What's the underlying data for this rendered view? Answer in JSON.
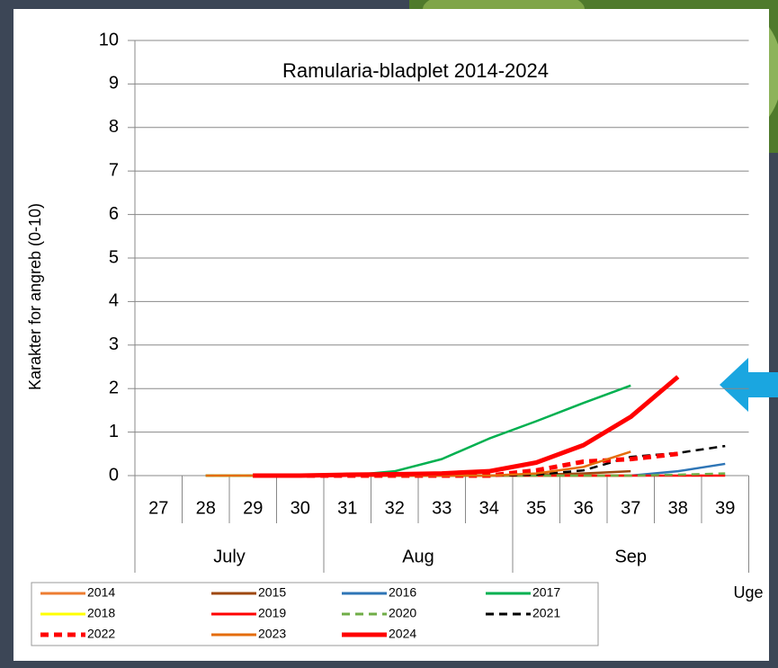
{
  "chart_data": {
    "type": "line",
    "title": "Ramularia-bladplet 2014-2024",
    "y_label": "Karakter for angreb (0-10)",
    "x_label": "Uge",
    "categories": [
      "27",
      "28",
      "29",
      "30",
      "31",
      "32",
      "33",
      "34",
      "35",
      "36",
      "37",
      "38",
      "39"
    ],
    "groups": [
      {
        "label": "July",
        "span": 4
      },
      {
        "label": "Aug",
        "span": 4
      },
      {
        "label": "Sep",
        "span": 5
      }
    ],
    "ylim": [
      0,
      10
    ],
    "yticks": [
      0,
      1,
      2,
      3,
      4,
      5,
      6,
      7,
      8,
      9,
      10
    ],
    "grid": true,
    "series": [
      {
        "name": "2014",
        "color": "#ed7d31",
        "values": [
          null,
          0,
          0,
          0,
          0,
          0,
          0,
          0,
          0,
          0,
          0,
          null,
          null
        ]
      },
      {
        "name": "2015",
        "color": "#9e480e",
        "values": [
          null,
          0,
          0,
          0,
          0,
          0,
          0,
          0,
          0.02,
          0.05,
          0.1,
          null,
          null
        ]
      },
      {
        "name": "2016",
        "color": "#2e75b6",
        "values": [
          null,
          0,
          0,
          0,
          0,
          0,
          0,
          0,
          0,
          0,
          0,
          0.1,
          0.27
        ]
      },
      {
        "name": "2017",
        "color": "#00b050",
        "values": [
          null,
          0,
          0,
          0,
          0,
          0.1,
          0.38,
          0.85,
          1.25,
          1.67,
          2.07,
          null,
          null
        ]
      },
      {
        "name": "2018",
        "color": "#ffff00",
        "values": [
          null,
          0,
          0,
          0,
          0,
          0,
          0,
          0,
          0,
          0,
          0,
          null,
          null
        ]
      },
      {
        "name": "2019",
        "color": "#ff0000",
        "values": [
          null,
          null,
          0,
          0,
          0,
          0,
          0,
          0,
          0,
          0,
          0,
          0,
          0
        ]
      },
      {
        "name": "2020",
        "color": "#70ad47",
        "dashed": true,
        "values": [
          null,
          0,
          0,
          0,
          0,
          0,
          0,
          0,
          0,
          0,
          0,
          0.02,
          0.05
        ]
      },
      {
        "name": "2021",
        "color": "#000000",
        "dashed": true,
        "values": [
          null,
          null,
          0,
          0,
          0,
          0,
          0,
          0,
          0.02,
          0.12,
          0.43,
          0.52,
          0.68
        ]
      },
      {
        "name": "2022",
        "color": "#ff0000",
        "dashed": true,
        "thick": true,
        "values": [
          null,
          null,
          0,
          0,
          0,
          0,
          0,
          0,
          0.12,
          0.32,
          0.38,
          0.5,
          null
        ]
      },
      {
        "name": "2023",
        "color": "#e46c0a",
        "values": [
          null,
          0,
          0,
          0,
          0,
          0,
          0,
          0,
          0.05,
          0.2,
          0.55,
          null,
          null
        ]
      },
      {
        "name": "2024",
        "color": "#ff0000",
        "thick": true,
        "values": [
          null,
          null,
          0,
          0,
          0.02,
          0.03,
          0.05,
          0.1,
          0.3,
          0.7,
          1.35,
          2.27,
          null
        ]
      }
    ]
  }
}
